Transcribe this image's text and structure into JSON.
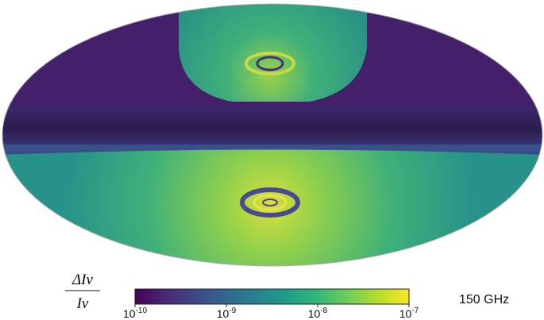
{
  "colorbar": {
    "label_numerator": "ΔIν",
    "label_denominator": "Iν",
    "scale": "log",
    "lim": [
      1e-10,
      1e-07
    ],
    "ticks": [
      {
        "value": 1e-10,
        "label": "10",
        "exponent": "-10"
      },
      {
        "value": 1e-09,
        "label": "10",
        "exponent": "-9"
      },
      {
        "value": 1e-08,
        "label": "10",
        "exponent": "-8"
      },
      {
        "value": 1e-07,
        "label": "10",
        "exponent": "-7"
      }
    ],
    "colors": [
      "#440154",
      "#482878",
      "#3e4989",
      "#31688e",
      "#26828e",
      "#1f9e89",
      "#35b779",
      "#6ece58",
      "#b5de2b",
      "#fde725"
    ]
  },
  "frequency_label": "150 GHz"
}
